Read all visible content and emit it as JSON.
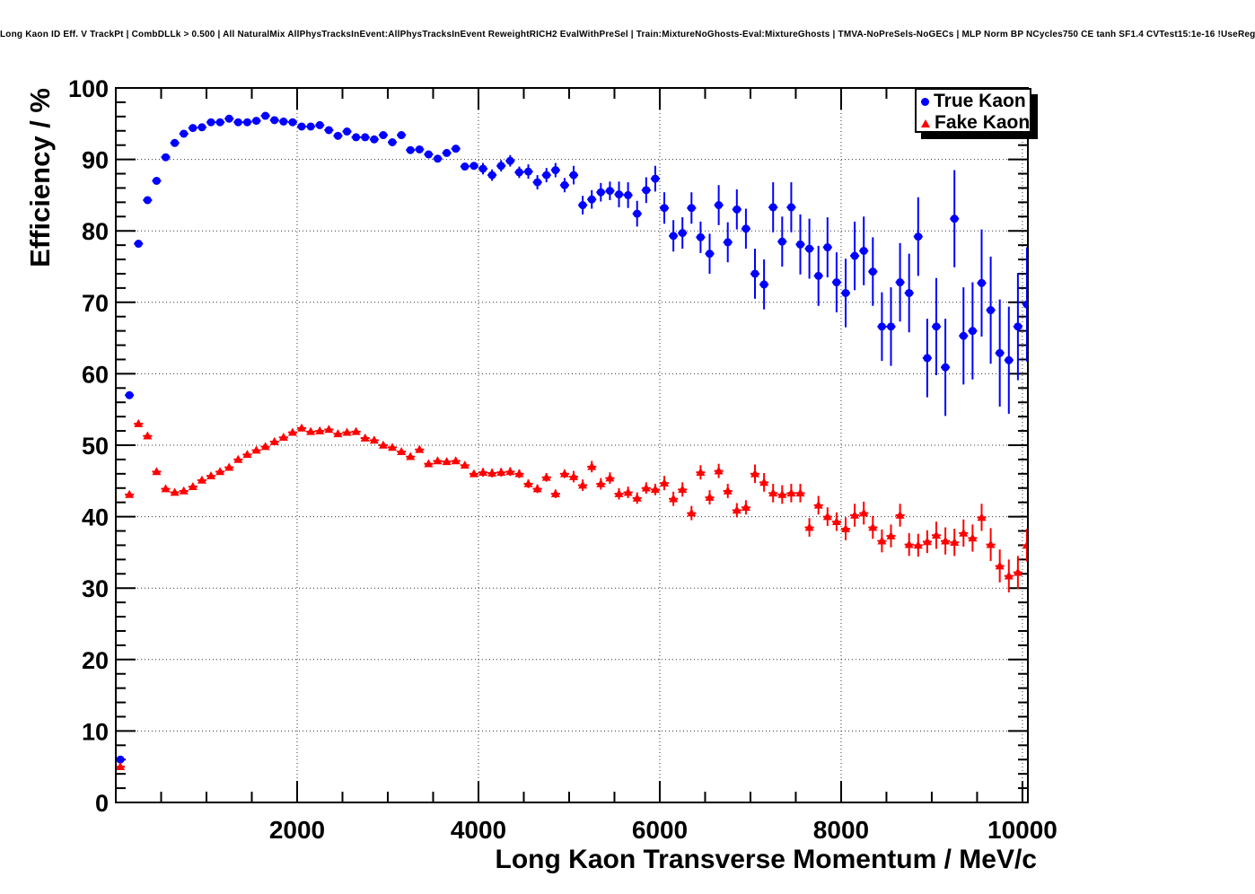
{
  "title": "Long Kaon ID Eff. V TrackPt | CombDLLk > 0.500 | All NaturalMix AllPhysTracksInEvent:AllPhysTracksInEvent ReweightRICH2 EvalWithPreSel | Train:MixtureNoGhosts-Eval:MixtureGhosts | TMVA-NoPreSels-NoGECs | MLP Norm BP NCycles750 CE tanh SF1.4 CVTest15:1e-16 !UseReg",
  "axes": {
    "x_label": "Long Kaon Transverse Momentum / MeV/c",
    "y_label": "Efficiency / %",
    "x_ticks": [
      2000,
      4000,
      6000,
      8000,
      10000
    ],
    "x_minor_step": 500,
    "y_ticks": [
      0,
      10,
      20,
      30,
      40,
      50,
      60,
      70,
      80,
      90,
      100
    ],
    "y_minor_step": 2
  },
  "legend": {
    "entries": [
      {
        "label": "True Kaon",
        "marker": "circle",
        "color": "#0000ff"
      },
      {
        "label": "Fake Kaon",
        "marker": "triangle",
        "color": "#ff0000"
      }
    ]
  },
  "chart_data": {
    "type": "scatter",
    "title": "Long Kaon ID Eff. V TrackPt | CombDLLk > 0.500 | All NaturalMix AllPhysTracksInEvent:AllPhysTracksInEvent ReweightRICH2 EvalWithPreSel | Train:MixtureNoGhosts-Eval:MixtureGhosts | TMVA-NoPreSels-NoGECs | MLP Norm BP NCycles750 CE tanh SF1.4 CVTest15:1e-16 !UseReg",
    "xlabel": "Long Kaon Transverse Momentum / MeV/c",
    "ylabel": "Efficiency / %",
    "xlim": [
      0,
      10060
    ],
    "ylim": [
      0,
      100
    ],
    "grid": "dotted-at-major-ticks",
    "legend_position": "top-right",
    "x_bin_centers_start": 50,
    "x_bin_step": 100,
    "x_half_width": 50,
    "series": [
      {
        "name": "True Kaon",
        "marker": "circle",
        "color": "#0000ff",
        "values": [
          6.0,
          57.0,
          78.2,
          84.3,
          87.0,
          90.3,
          92.3,
          93.6,
          94.4,
          94.5,
          95.2,
          95.2,
          95.7,
          95.2,
          95.2,
          95.4,
          96.1,
          95.5,
          95.3,
          95.2,
          94.6,
          94.6,
          94.8,
          94.1,
          93.3,
          93.9,
          93.1,
          93.1,
          92.8,
          93.4,
          92.4,
          93.4,
          91.3,
          91.4,
          90.7,
          90.1,
          90.9,
          91.5,
          89.0,
          89.1,
          88.7,
          87.8,
          89.1,
          89.8,
          88.2,
          88.3,
          86.8,
          87.8,
          88.5,
          86.4,
          87.8,
          83.6,
          84.4,
          85.4,
          85.6,
          85.1,
          85.0,
          82.4,
          85.7,
          87.3,
          83.2,
          79.3,
          79.7,
          83.2,
          79.1,
          76.8,
          83.6,
          78.4,
          83.0,
          80.3,
          74.0,
          72.5,
          83.3,
          78.5,
          83.3,
          78.1,
          77.5,
          73.7,
          77.7,
          72.8,
          71.3,
          76.5,
          77.2,
          74.3,
          66.6,
          66.6,
          72.8,
          71.3,
          79.2,
          62.2,
          66.6,
          60.9,
          81.7,
          65.3,
          66.0,
          72.7,
          68.9,
          62.9,
          61.9,
          66.6,
          69.7
        ],
        "yerr": [
          0.3,
          0.3,
          0.3,
          0.3,
          0.3,
          0.3,
          0.3,
          0.3,
          0.3,
          0.3,
          0.3,
          0.3,
          0.3,
          0.3,
          0.3,
          0.3,
          0.3,
          0.3,
          0.3,
          0.3,
          0.35,
          0.35,
          0.35,
          0.35,
          0.35,
          0.35,
          0.35,
          0.35,
          0.35,
          0.35,
          0.5,
          0.5,
          0.5,
          0.5,
          0.5,
          0.5,
          0.5,
          0.5,
          0.5,
          0.5,
          0.8,
          0.8,
          0.8,
          0.8,
          0.8,
          1.0,
          1.0,
          1.0,
          1.0,
          1.0,
          1.3,
          1.3,
          1.3,
          1.3,
          1.3,
          1.8,
          1.8,
          1.8,
          1.8,
          1.8,
          2.2,
          2.2,
          2.2,
          2.2,
          2.2,
          2.8,
          2.8,
          2.8,
          2.8,
          2.8,
          3.5,
          3.5,
          3.5,
          3.5,
          3.5,
          4.2,
          4.2,
          4.2,
          4.2,
          4.2,
          4.8,
          4.8,
          4.8,
          4.8,
          4.8,
          5.5,
          5.5,
          5.5,
          5.5,
          5.5,
          6.8,
          6.8,
          6.8,
          6.8,
          6.8,
          7.5,
          7.5,
          7.5,
          7.5,
          7.5,
          8.0
        ]
      },
      {
        "name": "Fake Kaon",
        "marker": "triangle",
        "color": "#ff0000",
        "values": [
          5.0,
          43.1,
          53.0,
          51.3,
          46.3,
          43.9,
          43.4,
          43.6,
          44.2,
          45.1,
          45.7,
          46.3,
          46.9,
          48.0,
          48.7,
          49.3,
          49.8,
          50.5,
          51.1,
          51.8,
          52.4,
          51.9,
          52.0,
          52.2,
          51.6,
          51.8,
          51.9,
          51.0,
          50.7,
          50.0,
          49.7,
          49.1,
          48.4,
          49.4,
          47.4,
          47.8,
          47.7,
          47.8,
          47.2,
          46.0,
          46.2,
          46.1,
          46.2,
          46.3,
          46.0,
          44.6,
          43.9,
          45.5,
          43.2,
          46.0,
          45.6,
          44.4,
          47.0,
          44.6,
          45.4,
          43.2,
          43.4,
          42.6,
          44.0,
          43.8,
          44.7,
          42.5,
          43.8,
          40.5,
          46.2,
          42.7,
          46.4,
          43.6,
          40.9,
          41.3,
          46.0,
          44.8,
          43.3,
          43.1,
          43.3,
          43.3,
          38.5,
          41.6,
          40.0,
          39.3,
          38.3,
          40.2,
          40.5,
          38.5,
          36.6,
          37.3,
          40.2,
          36.1,
          36.0,
          36.5,
          37.4,
          36.6,
          36.4,
          37.7,
          37.0,
          39.9,
          36.1,
          33.1,
          31.7,
          32.2,
          36.0
        ],
        "yerr": [
          0.25,
          0.25,
          0.25,
          0.25,
          0.25,
          0.25,
          0.25,
          0.25,
          0.25,
          0.25,
          0.25,
          0.25,
          0.25,
          0.25,
          0.25,
          0.25,
          0.25,
          0.25,
          0.25,
          0.25,
          0.4,
          0.4,
          0.4,
          0.4,
          0.4,
          0.4,
          0.4,
          0.4,
          0.4,
          0.4,
          0.4,
          0.4,
          0.4,
          0.4,
          0.4,
          0.4,
          0.4,
          0.4,
          0.4,
          0.4,
          0.6,
          0.6,
          0.6,
          0.6,
          0.6,
          0.6,
          0.6,
          0.6,
          0.6,
          0.6,
          0.8,
          0.8,
          0.8,
          0.8,
          0.8,
          0.8,
          0.8,
          0.8,
          0.8,
          0.8,
          1.0,
          1.0,
          1.0,
          1.0,
          1.0,
          1.0,
          1.0,
          1.0,
          1.0,
          1.0,
          1.3,
          1.3,
          1.3,
          1.3,
          1.3,
          1.3,
          1.3,
          1.3,
          1.3,
          1.3,
          1.6,
          1.6,
          1.6,
          1.6,
          1.6,
          1.6,
          1.6,
          1.6,
          1.6,
          1.6,
          1.9,
          1.9,
          1.9,
          1.9,
          1.9,
          1.9,
          2.3,
          2.3,
          2.3,
          2.3,
          2.3
        ]
      }
    ]
  }
}
